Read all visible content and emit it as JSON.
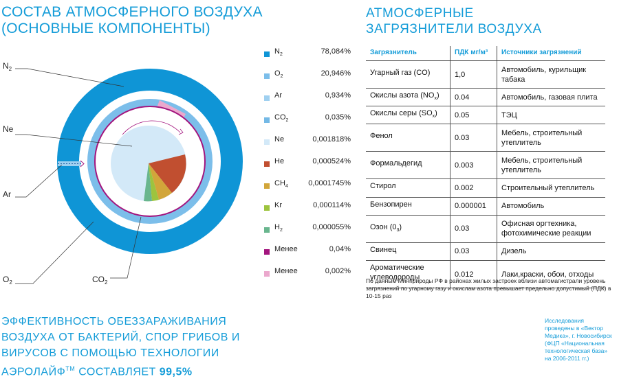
{
  "composition_title": [
    "СОСТАВ АТМОСФЕРНОГО ВОЗДУХА",
    "(ОСНОВНЫЕ КОМПОНЕНТЫ)"
  ],
  "pollutants_title": [
    "АТМОСФЕРНЫЕ",
    "ЗАГРЯЗНИТЕЛИ ВОЗДУХА"
  ],
  "diagram_labels": {
    "n2": {
      "main": "N",
      "sub": "2"
    },
    "ne": {
      "main": "Ne",
      "sub": ""
    },
    "ar": {
      "main": "Ar",
      "sub": ""
    },
    "o2": {
      "main": "O",
      "sub": "2"
    },
    "co2": {
      "main": "CO",
      "sub": "2"
    }
  },
  "legend": [
    {
      "name": "N",
      "sub": "2",
      "value": "78,084%",
      "color": "#0f95d6"
    },
    {
      "name": "O",
      "sub": "2",
      "value": "20,946%",
      "color": "#7cbeea"
    },
    {
      "name": "Ar",
      "sub": "",
      "value": "0,934%",
      "color": "#9fd0f0"
    },
    {
      "name": "CO",
      "sub": "2",
      "value": "0,035%",
      "color": "#74b9e6"
    },
    {
      "name": "Ne",
      "sub": "",
      "value": "0,001818%",
      "color": "#d3e9f8"
    },
    {
      "name": "He",
      "sub": "",
      "value": "0,000524%",
      "color": "#c14f30"
    },
    {
      "name": "CH",
      "sub": "4",
      "value": "0,0001745%",
      "color": "#d2a63a"
    },
    {
      "name": "Kr",
      "sub": "",
      "value": "0,000114%",
      "color": "#9dc43e"
    },
    {
      "name": "H",
      "sub": "2",
      "value": "0,000055%",
      "color": "#69b68e"
    },
    {
      "name": "Менее",
      "sub": "",
      "value": "0,04%",
      "color": "#a3157e"
    },
    {
      "name": "Менее",
      "sub": "",
      "value": "0,002%",
      "color": "#eba8cd"
    }
  ],
  "table": {
    "headers": [
      "Загрязнитель",
      "ПДК мг/м³",
      "Источники загрязнений"
    ],
    "rows": [
      {
        "name": "Угарный газ (CO)",
        "sub": "",
        "after": "",
        "pdk": "1,0",
        "source": "Автомобиль, курильщик табака"
      },
      {
        "name": "Окислы азота (NO",
        "sub": "x",
        "after": ")",
        "pdk": "0.04",
        "source": "Автомобиль, газовая плита"
      },
      {
        "name": "Окислы серы (SO",
        "sub": "x",
        "after": ")",
        "pdk": "0.05",
        "source": "ТЭЦ"
      },
      {
        "name": "Фенол",
        "sub": "",
        "after": "",
        "pdk": "0.03",
        "source": "Мебель, строительный утеплитель"
      },
      {
        "name": "Формальдегид",
        "sub": "",
        "after": "",
        "pdk": "0.003",
        "source": "Мебель, строительный утеплитель"
      },
      {
        "name": "Стирол",
        "sub": "",
        "after": "",
        "pdk": "0.002",
        "source": "Строительный утеплитель"
      },
      {
        "name": "Бензопирен",
        "sub": "",
        "after": "",
        "pdk": "0.000001",
        "source": "Автомобиль"
      },
      {
        "name": "Озон (0",
        "sub": "3",
        "after": ")",
        "pdk": "0.03",
        "source": "Офисная оргтехника, фотохимические реакции"
      },
      {
        "name": "Свинец",
        "sub": "",
        "after": "",
        "pdk": "0.03",
        "source": "Дизель"
      },
      {
        "name": "Ароматические углеводороды",
        "sub": "",
        "after": "",
        "pdk": "0.012",
        "source": "Лаки,краски, обои, отходы"
      }
    ]
  },
  "note": "По данным Минприроды РФ в районах жилых застроек вблизи автомагистрали уровень загрязнений по угарному газу и окислам азота превышает предельно допустимый (ПДК) в 10-15 раз",
  "study_note": "Исследования проведены в «Вектор Медика», г. Новосибирск (ФЦП «Национальная технологическая база» на 2006-2011 гг.)",
  "efficiency": {
    "text": "ЭФФЕКТИВНОСТЬ ОБЕЗЗАРАЖИВАНИЯ ВОЗДУХА ОТ БАКТЕРИЙ, СПОР ГРИБОВ И ВИРУСОВ С ПОМОЩЬЮ ТЕХНОЛОГИИ АЭРОЛАЙФ",
    "tm": "TM",
    "middle": " СОСТАВЛЯЕТ ",
    "value": "99,5%"
  },
  "colors": {
    "accent": "#149cd8",
    "n2": "#0f95d6",
    "o2": "#7cbeea",
    "ne": "#d3e9f8",
    "he": "#c14f30",
    "ch4": "#d2a63a",
    "kr": "#9dc43e",
    "h2": "#69b68e",
    "less_004": "#a3157e",
    "less_0002": "#eba8cd"
  }
}
